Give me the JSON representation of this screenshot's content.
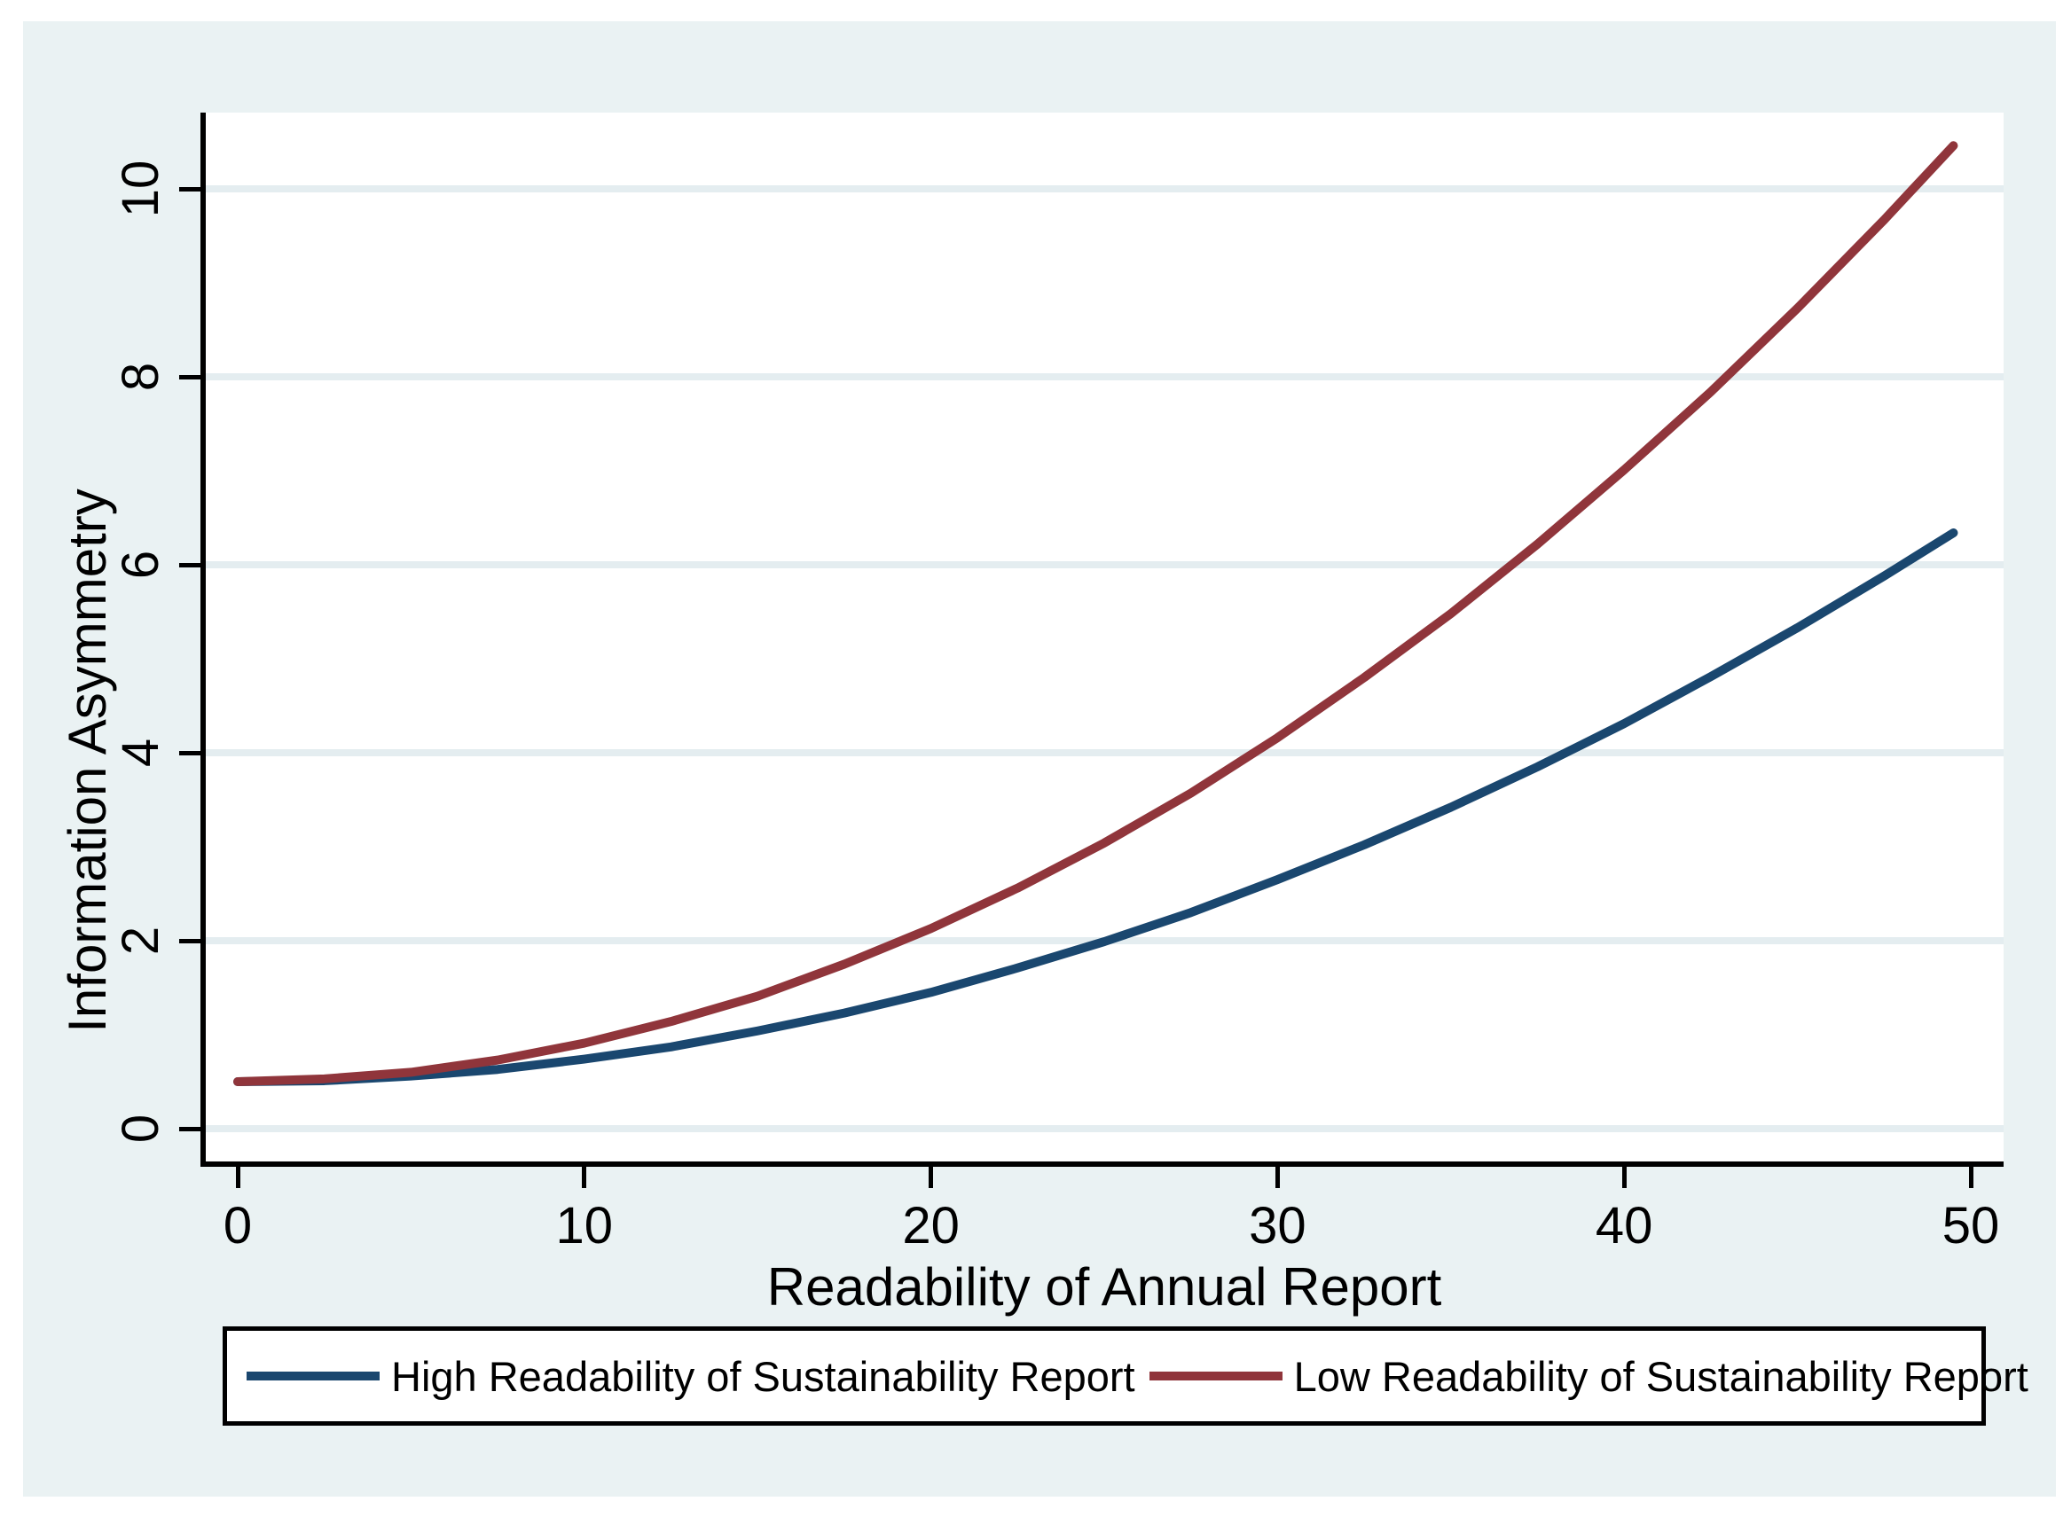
{
  "colors": {
    "graph_background": "#eaf2f3",
    "plot_background": "#ffffff",
    "grid": "#e4edf0",
    "axis": "#000000",
    "navy": "#1a476f",
    "maroon": "#90353b"
  },
  "chart_data": {
    "type": "line",
    "title": "",
    "xlabel": "Readability of Annual Report",
    "ylabel": "Information Asymmetry",
    "xlim": [
      0,
      50
    ],
    "ylim": [
      0,
      10.5
    ],
    "x_ticks": [
      0,
      10,
      20,
      30,
      40,
      50
    ],
    "y_ticks": [
      0,
      2,
      4,
      6,
      8,
      10
    ],
    "grid": "horizontal",
    "legend_position": "bottom",
    "x": [
      0,
      2.5,
      5,
      7.5,
      10,
      12.5,
      15,
      17.5,
      20,
      22.5,
      25,
      27.5,
      30,
      32.5,
      35,
      37.5,
      40,
      42.5,
      45,
      47.5,
      49.5
    ],
    "series": [
      {
        "name": "High Readability of Sustainability Report",
        "color": "#1a476f",
        "values": [
          0.5,
          0.51,
          0.56,
          0.63,
          0.74,
          0.87,
          1.04,
          1.23,
          1.45,
          1.71,
          1.99,
          2.3,
          2.65,
          3.02,
          3.42,
          3.85,
          4.31,
          4.81,
          5.33,
          5.88,
          6.34
        ]
      },
      {
        "name": "Low Readability of Sustainability Report",
        "color": "#90353b",
        "values": [
          0.5,
          0.53,
          0.6,
          0.73,
          0.91,
          1.14,
          1.41,
          1.75,
          2.13,
          2.56,
          3.04,
          3.57,
          4.16,
          4.8,
          5.48,
          6.22,
          7.01,
          7.84,
          8.73,
          9.67,
          10.46
        ]
      }
    ]
  }
}
